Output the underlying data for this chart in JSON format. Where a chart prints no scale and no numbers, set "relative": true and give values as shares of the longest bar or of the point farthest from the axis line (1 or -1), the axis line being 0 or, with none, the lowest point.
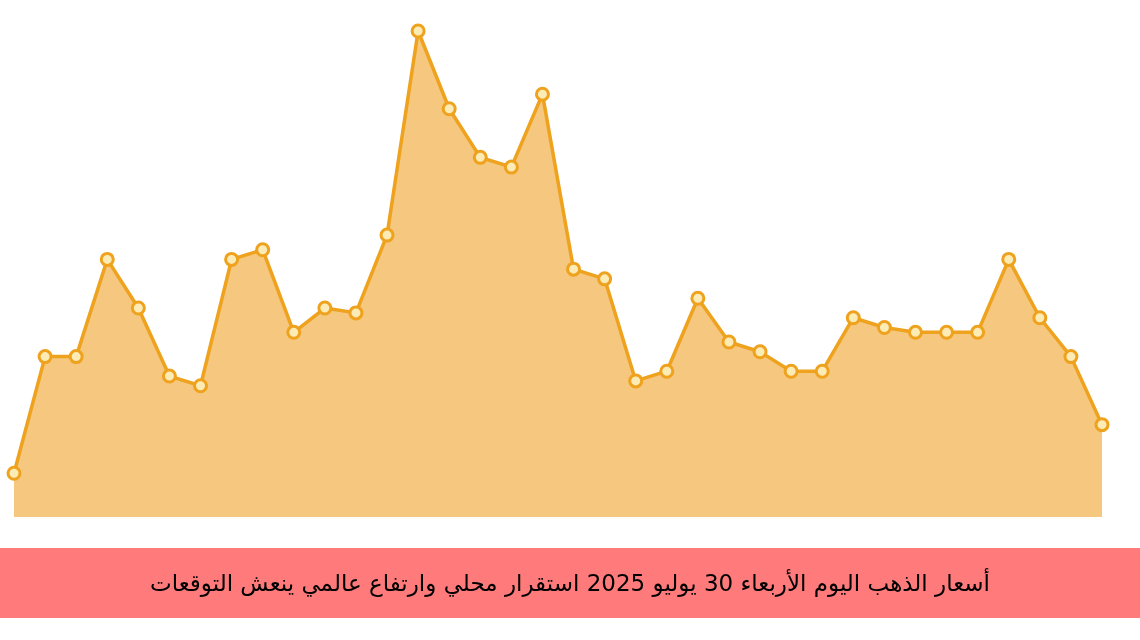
{
  "chart_data": {
    "type": "area",
    "title": "أسعار الذهب اليوم الأربعاء 30 يوليو 2025 استقرار محلي وارتفاع عالمي ينعش التوقعات",
    "relative": true,
    "marker": "circle",
    "color": "#eea21d",
    "categories": [
      null,
      null,
      null,
      null,
      null,
      null,
      null,
      null,
      null,
      null,
      null,
      null,
      null,
      null,
      null,
      null,
      null,
      null,
      null,
      null,
      null,
      null,
      null,
      null,
      null,
      null,
      null,
      null,
      null,
      null,
      null,
      null,
      null,
      null,
      null,
      null
    ],
    "values": [
      0.09,
      0.33,
      0.33,
      0.53,
      0.43,
      0.29,
      0.27,
      0.53,
      0.55,
      0.38,
      0.43,
      0.42,
      0.58,
      1.0,
      0.84,
      0.74,
      0.72,
      0.87,
      0.51,
      0.49,
      0.28,
      0.3,
      0.45,
      0.36,
      0.34,
      0.3,
      0.3,
      0.41,
      0.39,
      0.38,
      0.38,
      0.38,
      0.53,
      0.41,
      0.33,
      0.19
    ]
  }
}
